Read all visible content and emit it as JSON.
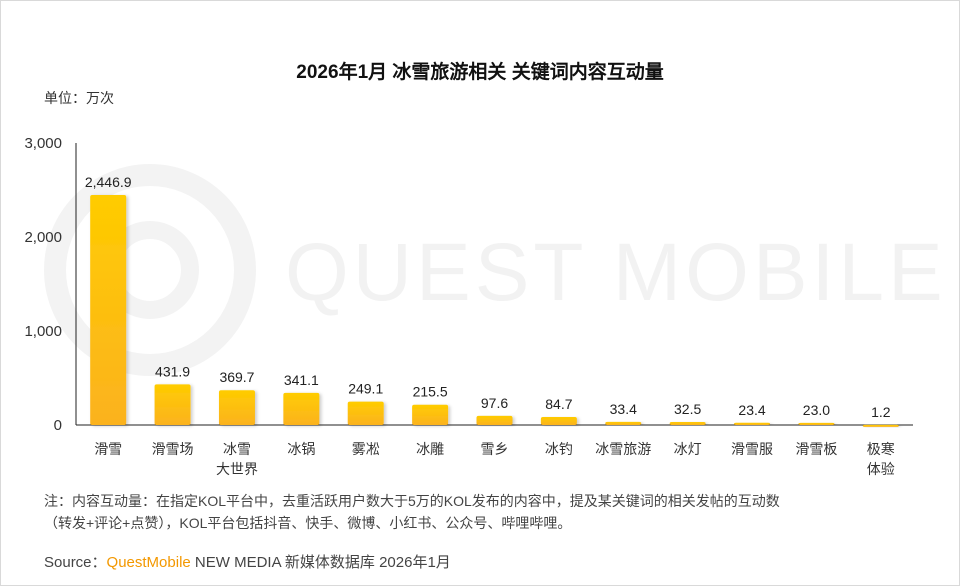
{
  "title": "2026年1月 冰雪旅游相关 关键词内容互动量",
  "unit_label": "单位：万次",
  "watermark": "QUEST MOBILE",
  "note_line1": "注：内容互动量：在指定KOL平台中，去重活跃用户数大于5万的KOL发布的内容中，提及某关键词的相关发帖的互动数",
  "note_line2": "（转发+评论+点赞），KOL平台包括抖音、快手、微博、小红书、公众号、哔哩哔哩。",
  "source_prefix": "Source：",
  "source_brand": "QuestMobile",
  "source_rest": " NEW MEDIA 新媒体数据库 2026年1月",
  "colors": {
    "bar_top": "#ffcc00",
    "bar_bottom": "#fbb21f",
    "brand": "#f39800"
  },
  "chart_data": {
    "type": "bar",
    "title": "2026年1月 冰雪旅游相关 关键词内容互动量",
    "ylabel": "单位：万次",
    "xlabel": "",
    "ylim": [
      0,
      3000
    ],
    "yticks": [
      0,
      1000,
      2000,
      3000
    ],
    "ytick_labels": [
      "0",
      "1,000",
      "2,000",
      "3,000"
    ],
    "categories": [
      "滑雪",
      "滑雪场",
      "冰雪\n大世界",
      "冰锅",
      "雾凇",
      "冰雕",
      "雪乡",
      "冰钓",
      "冰雪旅游",
      "冰灯",
      "滑雪服",
      "滑雪板",
      "极寒\n体验"
    ],
    "values": [
      2446.9,
      431.9,
      369.7,
      341.1,
      249.1,
      215.5,
      97.6,
      84.7,
      33.4,
      32.5,
      23.4,
      23.0,
      1.2
    ],
    "value_labels": [
      "2,446.9",
      "431.9",
      "369.7",
      "341.1",
      "249.1",
      "215.5",
      "97.6",
      "84.7",
      "33.4",
      "32.5",
      "23.4",
      "23.0",
      "1.2"
    ],
    "grid": false,
    "legend": "none"
  }
}
